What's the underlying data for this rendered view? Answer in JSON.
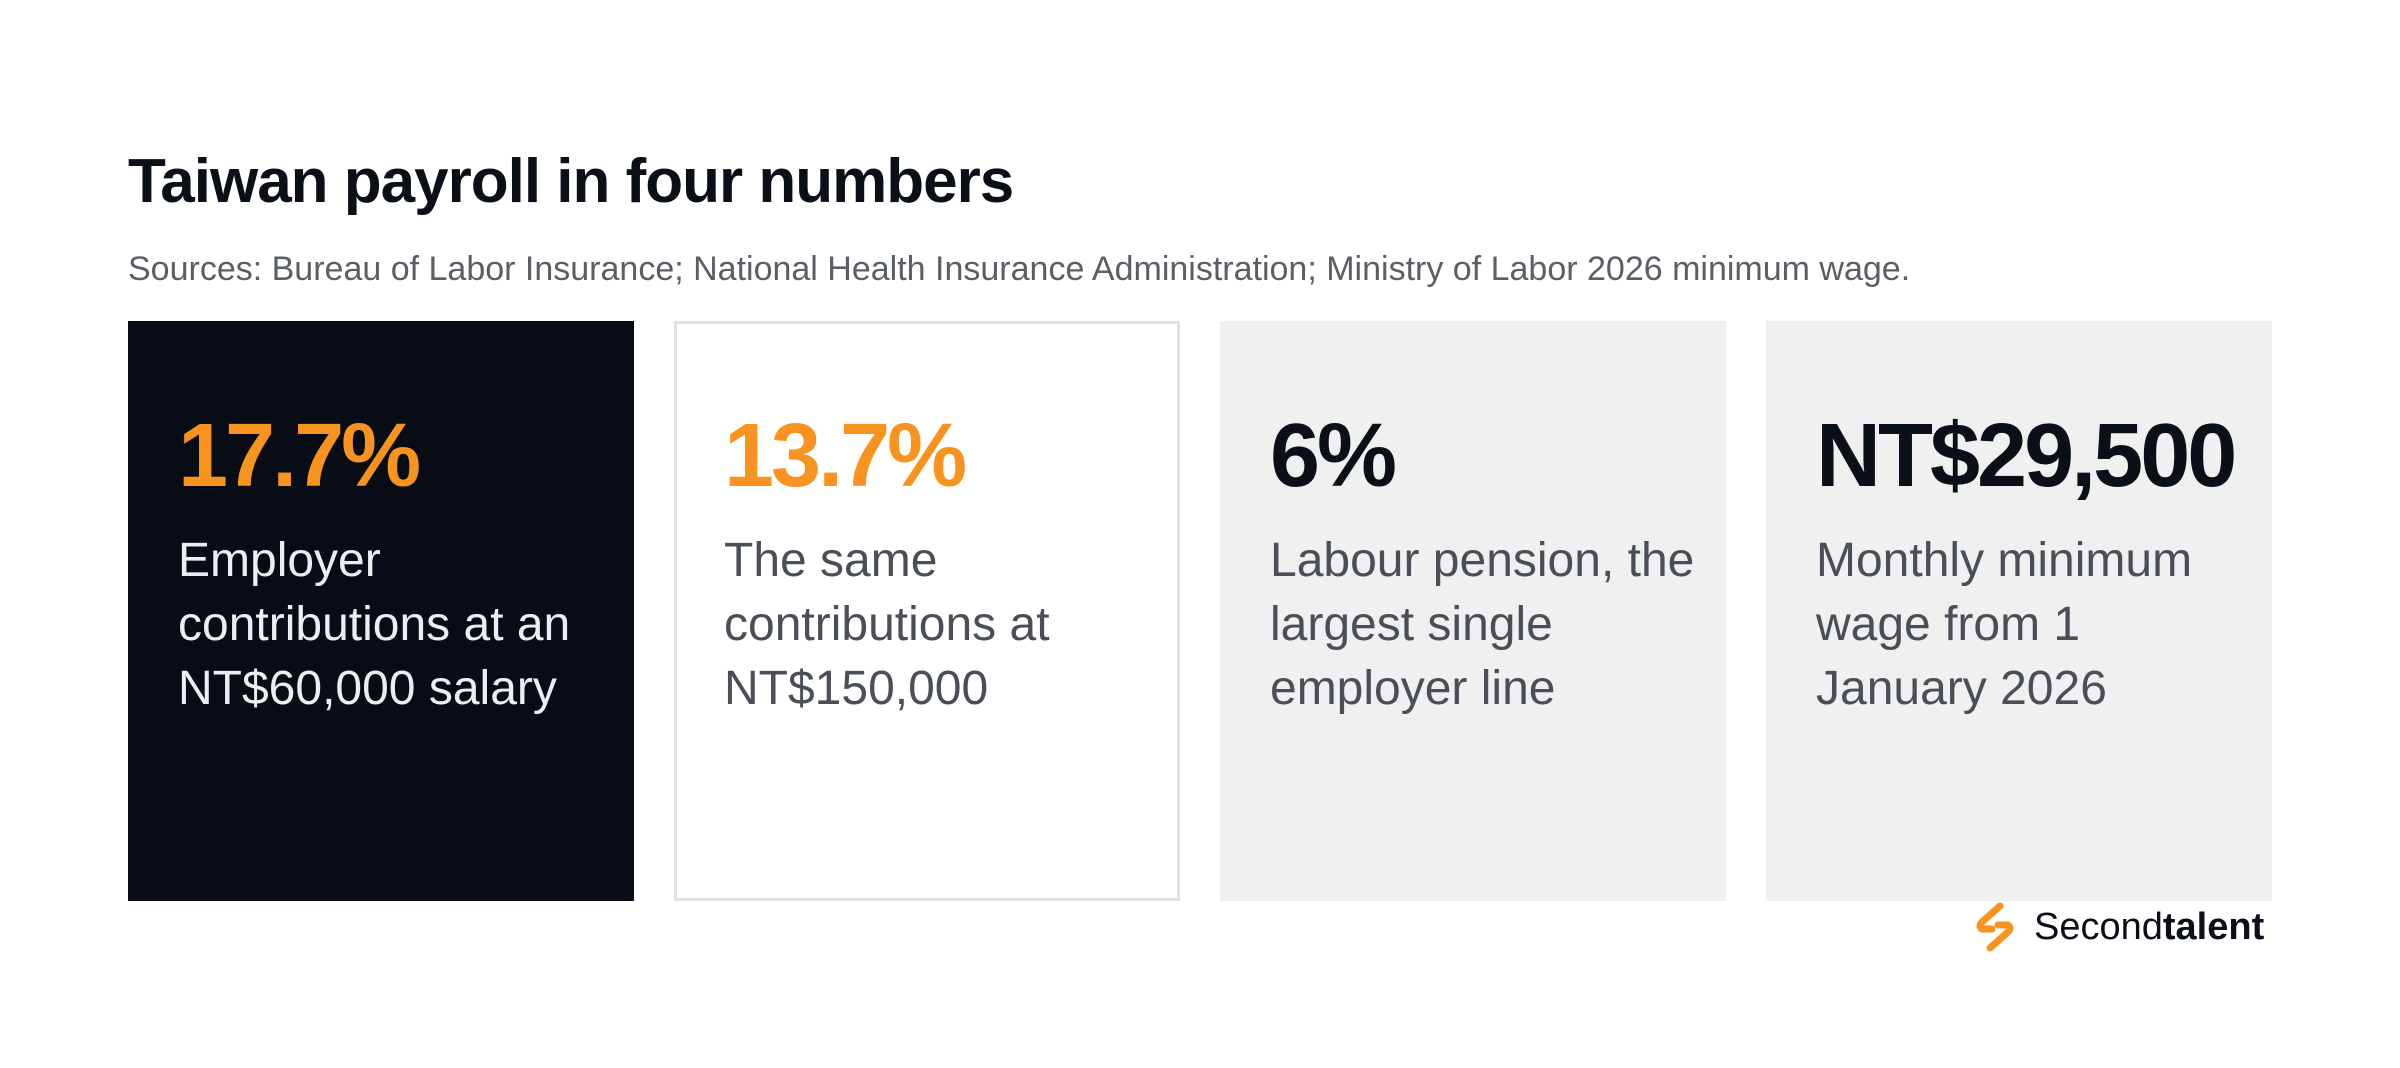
{
  "header": {
    "title": "Taiwan payroll in four numbers",
    "subtitle": "Sources: Bureau of Labor Insurance; National Health Insurance Administration; Ministry of Labor 2026 minimum wage."
  },
  "cards": [
    {
      "value": "17.7%",
      "description": "Employer contributions at an NT$60,000 salary"
    },
    {
      "value": "13.7%",
      "description": "The same contributions at NT$150,000"
    },
    {
      "value": "6%",
      "description": "Labour pension, the largest single employer line"
    },
    {
      "value": "NT$29,500",
      "description": "Monthly minimum wage from 1 January 2026"
    }
  ],
  "brand": {
    "name_light": "Second",
    "name_bold": "talent",
    "logo_icon": "secondtalent-s-logo-icon",
    "accent": "#f7931e"
  },
  "colors": {
    "accent": "#f7931e",
    "dark": "#080c14",
    "light_card": "#eff0ef"
  }
}
